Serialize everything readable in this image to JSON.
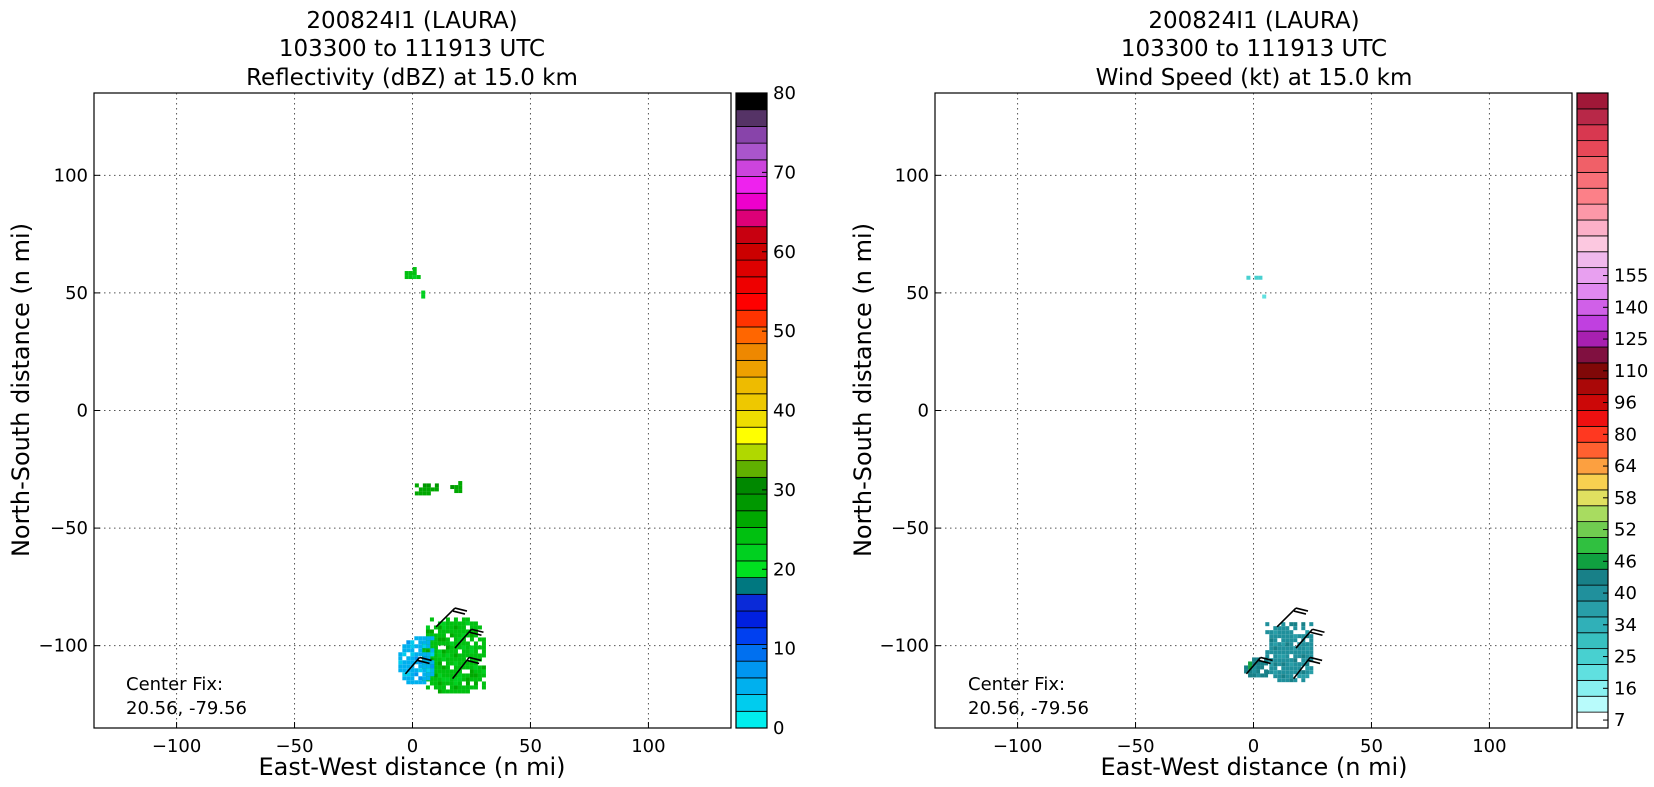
{
  "chart_data": [
    {
      "type": "heatmap",
      "title_lines": [
        "200824I1 (LAURA)",
        "103300 to 111913 UTC",
        "Reflectivity (dBZ) at 15.0 km"
      ],
      "xlabel": "East-West distance (n mi)",
      "ylabel": "North-South distance (n mi)",
      "xlim": [
        -135,
        135
      ],
      "ylim": [
        -135,
        135
      ],
      "xticks": [
        -100,
        -50,
        0,
        50,
        100
      ],
      "yticks": [
        100,
        50,
        0,
        -50,
        -100
      ],
      "grid": true,
      "annotation": [
        "Center Fix:",
        "20.56, -79.56"
      ],
      "colorbar": {
        "min": 0,
        "max": 80,
        "tick_values": [
          0,
          10,
          20,
          30,
          40,
          50,
          60,
          70,
          80
        ],
        "tick_labels": [
          "0",
          "10",
          "20",
          "30",
          "40",
          "50",
          "60",
          "70",
          "80"
        ],
        "colors": [
          "#00eeee",
          "#00ccee",
          "#00b0ee",
          "#0096f0",
          "#0070f0",
          "#0040f0",
          "#0020e0",
          "#0a2ad8",
          "#007880",
          "#00e020",
          "#00d020",
          "#00c010",
          "#00a800",
          "#009800",
          "#008800",
          "#60b000",
          "#b0d800",
          "#ffff00",
          "#eedd00",
          "#eec800",
          "#eebb00",
          "#eea000",
          "#ee8800",
          "#ff6600",
          "#ff3300",
          "#ff0000",
          "#ee0000",
          "#dd0000",
          "#cc0000",
          "#c80010",
          "#dd0077",
          "#ee00cc",
          "#ee22ee",
          "#cc44dd",
          "#aa55cc",
          "#8844aa",
          "#553366",
          "#000000"
        ]
      },
      "echo_regions": [
        {
          "x": [
            -5,
            3
          ],
          "y": [
            56,
            61
          ],
          "level": 11
        },
        {
          "x": [
            2,
            5
          ],
          "y": [
            49,
            51
          ],
          "level": 10
        },
        {
          "x": [
            1,
            10
          ],
          "y": [
            -35,
            -31
          ],
          "level": 12
        },
        {
          "x": [
            16,
            20
          ],
          "y": [
            -35,
            -30
          ],
          "level": 12
        },
        {
          "x": [
            4,
            30
          ],
          "y": [
            -120,
            -88
          ],
          "level": 11
        },
        {
          "x": [
            -6,
            8
          ],
          "y": [
            -116,
            -96
          ],
          "level": 2
        }
      ],
      "wind_barbs": [
        {
          "x": [
            10,
            18
          ],
          "y": [
            -92,
            -84
          ]
        },
        {
          "x": [
            18,
            25
          ],
          "y": [
            -101,
            -93
          ]
        },
        {
          "x": [
            -3,
            3
          ],
          "y": [
            -112,
            -105
          ]
        },
        {
          "x": [
            17,
            24
          ],
          "y": [
            -114,
            -105
          ]
        }
      ]
    },
    {
      "type": "heatmap",
      "title_lines": [
        "200824I1 (LAURA)",
        "103300 to 111913 UTC",
        "Wind Speed (kt) at 15.0 km"
      ],
      "xlabel": "East-West distance (n mi)",
      "ylabel": "North-South distance (n mi)",
      "xlim": [
        -135,
        135
      ],
      "ylim": [
        -135,
        135
      ],
      "xticks": [
        -100,
        -50,
        0,
        50,
        100
      ],
      "yticks": [
        100,
        50,
        0,
        -50,
        -100
      ],
      "grid": true,
      "annotation": [
        "Center Fix:",
        "20.56, -79.56"
      ],
      "colorbar": {
        "tick_labels": [
          "7",
          "16",
          "25",
          "34",
          "40",
          "46",
          "52",
          "58",
          "64",
          "80",
          "96",
          "110",
          "125",
          "140",
          "155"
        ],
        "tick_bins": [
          0,
          2,
          4,
          6,
          8,
          10,
          12,
          14,
          16,
          18,
          20,
          22,
          24,
          26,
          28
        ],
        "colors": [
          "#ffffff",
          "#b8fbfb",
          "#88f0f0",
          "#60e0e0",
          "#48d0d0",
          "#38c0c0",
          "#30b0b8",
          "#289ea8",
          "#20909c",
          "#188088",
          "#10a040",
          "#30c040",
          "#70cc50",
          "#a8dc60",
          "#e0e060",
          "#f8d050",
          "#fca040",
          "#ff6030",
          "#ff3820",
          "#ee1010",
          "#cc0808",
          "#aa0808",
          "#800808",
          "#801040",
          "#a820b0",
          "#c040e0",
          "#d060e8",
          "#e088f0",
          "#e8a0f0",
          "#f0b8ec",
          "#fcc8e0",
          "#fcb0c8",
          "#fc98a8",
          "#fc8088",
          "#f87078",
          "#f06068",
          "#e84858",
          "#d83850",
          "#b82848",
          "#a01838"
        ]
      },
      "echo_regions": [
        {
          "x": [
            -3,
            3
          ],
          "y": [
            56,
            59
          ],
          "level": 4
        },
        {
          "x": [
            2,
            4
          ],
          "y": [
            49,
            51
          ],
          "level": 3
        },
        {
          "x": [
            5,
            25
          ],
          "y": [
            -115,
            -90
          ],
          "level": 8
        },
        {
          "x": [
            -4,
            6
          ],
          "y": [
            -113,
            -105
          ],
          "level": 9
        }
      ],
      "wind_barbs": [
        {
          "x": [
            10,
            18
          ],
          "y": [
            -92,
            -84
          ]
        },
        {
          "x": [
            18,
            25
          ],
          "y": [
            -101,
            -93
          ]
        },
        {
          "x": [
            -3,
            3
          ],
          "y": [
            -112,
            -105
          ]
        },
        {
          "x": [
            17,
            24
          ],
          "y": [
            -114,
            -105
          ]
        }
      ]
    }
  ]
}
